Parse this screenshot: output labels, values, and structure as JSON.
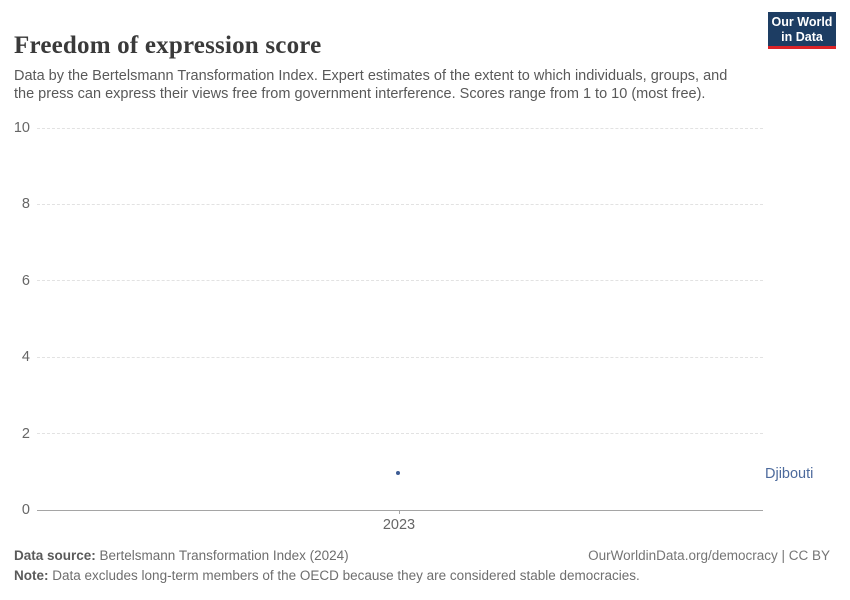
{
  "header": {
    "title": "Freedom of expression score",
    "subtitle": "Data by the Bertelsmann Transformation Index. Expert estimates of the extent to which individuals, groups, and the press can express their views free from government interference. Scores range from 1 to 10 (most free).",
    "logo": {
      "line1": "Our World",
      "line2": "in Data"
    }
  },
  "chart_data": {
    "type": "scatter",
    "title": "Freedom of expression score",
    "x": [
      2023
    ],
    "series": [
      {
        "name": "Djibouti",
        "values": [
          1
        ],
        "color": "#3d5c94"
      }
    ],
    "xlabel": "",
    "ylabel": "",
    "ylim": [
      0,
      10
    ],
    "yticks": [
      0,
      2,
      4,
      6,
      8,
      10
    ],
    "xtick_labels": [
      "2023"
    ],
    "grid": "horizontal-dashed",
    "legend_position": "entity-label-right",
    "entity_labels": [
      {
        "text": "Djibouti",
        "color": "#4c6a9c"
      }
    ]
  },
  "colors": {
    "logo_navy": "#1d3d63",
    "logo_red": "#dc2327",
    "point_blue": "#3d5c94",
    "entity_label_blue": "#4c6a9c",
    "gridline_gray": "#e2e2e2",
    "axis_gray": "#a5a5a5",
    "tick_text_gray": "#666666"
  },
  "footer": {
    "source_label": "Data source:",
    "source_text": " Bertelsmann Transformation Index (2024)",
    "note_label": "Note:",
    "note_text": " Data excludes long-term members of the OECD because they are considered stable democracies.",
    "link_text": "OurWorldinData.org/democracy | CC BY"
  }
}
